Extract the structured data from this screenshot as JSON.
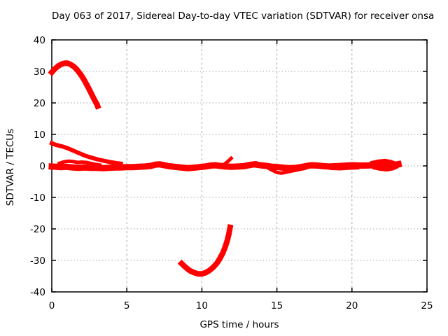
{
  "chart_data": {
    "type": "scatter",
    "title": "Day 063 of 2017, Sidereal Day-to-day VTEC variation (SDTVAR) for receiver onsa",
    "xlabel": "GPS time / hours",
    "ylabel": "SDTVAR / TECUs",
    "xlim": [
      0,
      25
    ],
    "ylim": [
      -40,
      40
    ],
    "xticks": [
      0,
      5,
      10,
      15,
      20,
      25
    ],
    "yticks": [
      -40,
      -30,
      -20,
      -10,
      0,
      10,
      20,
      30,
      40
    ],
    "grid": true,
    "legend": "none",
    "color": "#ff0000",
    "grid_color": "#a6a6a6",
    "border_color": "#000000",
    "background": "#ffffff",
    "series": [
      {
        "name": "vtec-arc-morning",
        "width": 8,
        "points": [
          [
            0,
            29.7
          ],
          [
            0.12,
            30.4
          ],
          [
            0.28,
            31.1
          ],
          [
            0.45,
            31.8
          ],
          [
            0.65,
            32.3
          ],
          [
            0.85,
            32.6
          ],
          [
            1.05,
            32.6
          ],
          [
            1.25,
            32.2
          ],
          [
            1.45,
            31.6
          ],
          [
            1.65,
            30.7
          ],
          [
            1.85,
            29.5
          ],
          [
            2.05,
            28.1
          ],
          [
            2.25,
            26.5
          ],
          [
            2.45,
            24.7
          ],
          [
            2.65,
            22.8
          ],
          [
            2.85,
            20.9
          ],
          [
            3.0,
            19.6
          ],
          [
            3.05,
            19.0
          ]
        ]
      },
      {
        "name": "vtec-branch-upper",
        "width": 6,
        "points": [
          [
            0,
            7.2
          ],
          [
            0.25,
            6.7
          ],
          [
            0.5,
            6.4
          ],
          [
            0.75,
            6.1
          ],
          [
            1.0,
            5.7
          ],
          [
            1.3,
            5.1
          ],
          [
            1.6,
            4.5
          ],
          [
            1.9,
            3.9
          ],
          [
            2.2,
            3.3
          ],
          [
            2.5,
            2.8
          ],
          [
            2.8,
            2.4
          ],
          [
            3.1,
            2.0
          ],
          [
            3.5,
            1.6
          ],
          [
            3.9,
            1.2
          ],
          [
            4.3,
            0.9
          ],
          [
            4.6,
            0.7
          ]
        ]
      },
      {
        "name": "vtec-band-main",
        "width": 9,
        "points": [
          [
            0,
            -0.2
          ],
          [
            0.3,
            -0.3
          ],
          [
            0.6,
            -0.4
          ],
          [
            1.0,
            -0.3
          ],
          [
            1.4,
            -0.5
          ],
          [
            1.8,
            -0.6
          ],
          [
            2.2,
            -0.5
          ],
          [
            2.6,
            -0.6
          ],
          [
            3.0,
            -0.6
          ],
          [
            3.4,
            -0.7
          ],
          [
            3.8,
            -0.6
          ],
          [
            4.2,
            -0.5
          ],
          [
            4.6,
            -0.5
          ],
          [
            5.0,
            -0.4
          ],
          [
            5.4,
            -0.4
          ],
          [
            5.8,
            -0.3
          ],
          [
            6.2,
            -0.2
          ],
          [
            6.6,
            0.0
          ],
          [
            6.9,
            0.4
          ],
          [
            7.2,
            0.5
          ],
          [
            7.5,
            0.2
          ],
          [
            7.8,
            -0.1
          ],
          [
            8.2,
            -0.3
          ],
          [
            8.6,
            -0.5
          ],
          [
            9.0,
            -0.7
          ],
          [
            9.4,
            -0.6
          ],
          [
            9.8,
            -0.4
          ],
          [
            10.2,
            -0.2
          ],
          [
            10.6,
            0.1
          ],
          [
            10.9,
            0.2
          ],
          [
            11.2,
            0.0
          ],
          [
            11.6,
            -0.2
          ],
          [
            12.0,
            -0.3
          ],
          [
            12.4,
            -0.2
          ],
          [
            12.8,
            -0.1
          ],
          [
            13.2,
            0.3
          ],
          [
            13.5,
            0.5
          ],
          [
            13.9,
            0.2
          ],
          [
            14.3,
            0.0
          ],
          [
            14.7,
            -0.3
          ],
          [
            15.1,
            -0.4
          ],
          [
            15.5,
            -0.6
          ],
          [
            15.9,
            -0.7
          ],
          [
            16.3,
            -0.6
          ],
          [
            16.7,
            -0.3
          ],
          [
            17.0,
            0.0
          ],
          [
            17.3,
            0.2
          ],
          [
            17.7,
            0.1
          ],
          [
            18.1,
            -0.1
          ],
          [
            18.5,
            -0.2
          ],
          [
            18.9,
            -0.1
          ],
          [
            19.3,
            0.0
          ],
          [
            19.7,
            0.1
          ],
          [
            20.1,
            0.2
          ],
          [
            20.5,
            0.1
          ],
          [
            20.9,
            0.1
          ],
          [
            21.3,
            0.2
          ],
          [
            21.7,
            0.4
          ],
          [
            22.1,
            0.5
          ],
          [
            22.5,
            0.4
          ],
          [
            22.9,
            0.3
          ],
          [
            23.1,
            0.5
          ]
        ]
      },
      {
        "name": "vtec-band-loop",
        "width": 5,
        "points": [
          [
            0.5,
            0.8
          ],
          [
            0.8,
            1.3
          ],
          [
            1.1,
            1.5
          ],
          [
            1.4,
            1.4
          ],
          [
            1.7,
            1.1
          ],
          [
            2.0,
            1.2
          ],
          [
            2.3,
            1.1
          ],
          [
            2.6,
            0.8
          ],
          [
            2.9,
            0.5
          ],
          [
            3.2,
            0.3
          ]
        ]
      },
      {
        "name": "vtec-band-lower-strand",
        "width": 4,
        "points": [
          [
            18.6,
            -0.9
          ],
          [
            19.2,
            -1.0
          ],
          [
            19.8,
            -0.8
          ],
          [
            20.4,
            -0.7
          ]
        ]
      },
      {
        "name": "vtec-spur-12h",
        "width": 5,
        "points": [
          [
            11.4,
            0.2
          ],
          [
            11.6,
            0.9
          ],
          [
            11.8,
            1.7
          ],
          [
            11.95,
            2.4
          ]
        ]
      },
      {
        "name": "vtec-spur-13h",
        "width": 5,
        "points": [
          [
            13.0,
            0.3
          ],
          [
            13.3,
            0.8
          ],
          [
            13.6,
            1.0
          ],
          [
            13.9,
            0.5
          ]
        ]
      },
      {
        "name": "vtec-dip-15h",
        "width": 5,
        "points": [
          [
            14.4,
            -0.6
          ],
          [
            14.7,
            -1.4
          ],
          [
            15.0,
            -2.1
          ],
          [
            15.3,
            -2.3
          ],
          [
            15.7,
            -1.9
          ],
          [
            16.1,
            -1.5
          ],
          [
            16.5,
            -1.1
          ],
          [
            16.9,
            -0.7
          ]
        ]
      },
      {
        "name": "vtec-blob-end-upper",
        "width": 7,
        "points": [
          [
            21.4,
            0.9
          ],
          [
            21.8,
            1.3
          ],
          [
            22.2,
            1.5
          ],
          [
            22.6,
            1.1
          ],
          [
            22.9,
            0.6
          ],
          [
            23.1,
            0.8
          ]
        ]
      },
      {
        "name": "vtec-blob-end-lower",
        "width": 6,
        "points": [
          [
            21.5,
            -0.5
          ],
          [
            21.9,
            -0.9
          ],
          [
            22.3,
            -1.1
          ],
          [
            22.7,
            -0.8
          ],
          [
            23.0,
            -0.2
          ],
          [
            23.1,
            0.3
          ]
        ]
      },
      {
        "name": "vtec-arc-evening",
        "width": 8,
        "points": [
          [
            8.65,
            -31.0
          ],
          [
            8.85,
            -31.9
          ],
          [
            9.05,
            -32.7
          ],
          [
            9.25,
            -33.4
          ],
          [
            9.5,
            -33.9
          ],
          [
            9.75,
            -34.3
          ],
          [
            10.0,
            -34.3
          ],
          [
            10.25,
            -33.9
          ],
          [
            10.5,
            -33.2
          ],
          [
            10.75,
            -32.2
          ],
          [
            11.0,
            -30.9
          ],
          [
            11.2,
            -29.4
          ],
          [
            11.4,
            -27.6
          ],
          [
            11.55,
            -25.8
          ],
          [
            11.7,
            -23.6
          ],
          [
            11.8,
            -21.6
          ],
          [
            11.88,
            -19.5
          ]
        ]
      }
    ]
  }
}
